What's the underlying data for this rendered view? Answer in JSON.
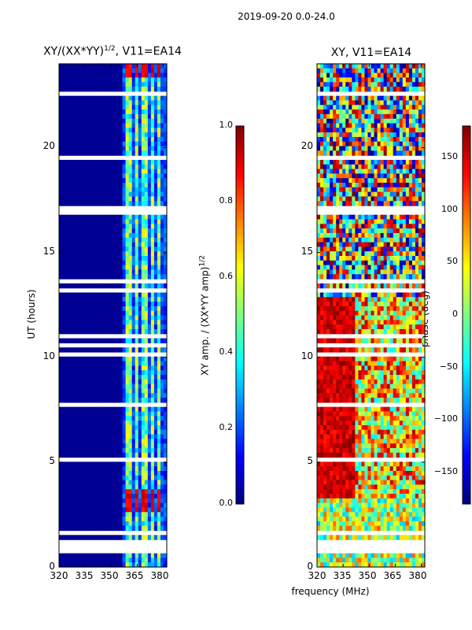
{
  "figure": {
    "suptitle": "2019-09-20 0.0-24.0",
    "xlabel": "frequency (MHz)"
  },
  "chart_data": [
    {
      "type": "heatmap",
      "title": "XY/(XX*YY)",
      "title_exponent": "1/2",
      "title_suffix": ", V11=EA14",
      "ylabel": "UT (hours)",
      "x_ticks": [
        320,
        335,
        350,
        365,
        380
      ],
      "y_ticks": [
        0,
        5,
        10,
        15,
        20
      ],
      "xlim": [
        320,
        382
      ],
      "ylim": [
        0,
        24
      ],
      "colormap": "jet",
      "colorbar": {
        "label": "XY amp. / (XX*YY amp)",
        "label_exponent": "1/2",
        "ticks": [
          "0.0",
          "0.2",
          "0.4",
          "0.6",
          "0.8",
          "1.0"
        ],
        "range": [
          0,
          1
        ]
      }
    },
    {
      "type": "heatmap",
      "title": "XY, V11=EA14",
      "ylabel": "phase (deg)",
      "x_ticks": [
        320,
        335,
        350,
        365,
        380
      ],
      "y_ticks": [
        0,
        5,
        10,
        15,
        20
      ],
      "xlim": [
        320,
        382
      ],
      "ylim": [
        0,
        24
      ],
      "colormap": "jet",
      "colorbar": {
        "ticks": [
          "150",
          "100",
          "50",
          "0",
          "−50",
          "−100",
          "−150"
        ],
        "range": [
          -180,
          180
        ]
      }
    }
  ]
}
